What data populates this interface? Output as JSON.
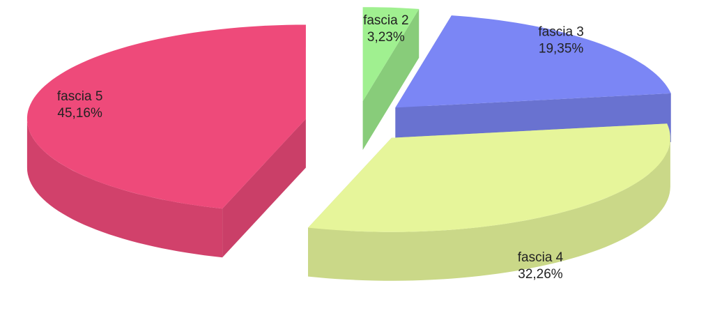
{
  "chart_data": {
    "type": "pie",
    "categories": [
      "fascia 2",
      "fascia 3",
      "fascia 4",
      "fascia 5"
    ],
    "values": [
      3.23,
      19.35,
      32.26,
      45.16
    ],
    "value_labels": [
      "3,23%",
      "19,35%",
      "32,26%",
      "45,16%"
    ],
    "colors": [
      "#a0f090",
      "#7b86f5",
      "#e6f59a",
      "#ee4a7a"
    ]
  }
}
